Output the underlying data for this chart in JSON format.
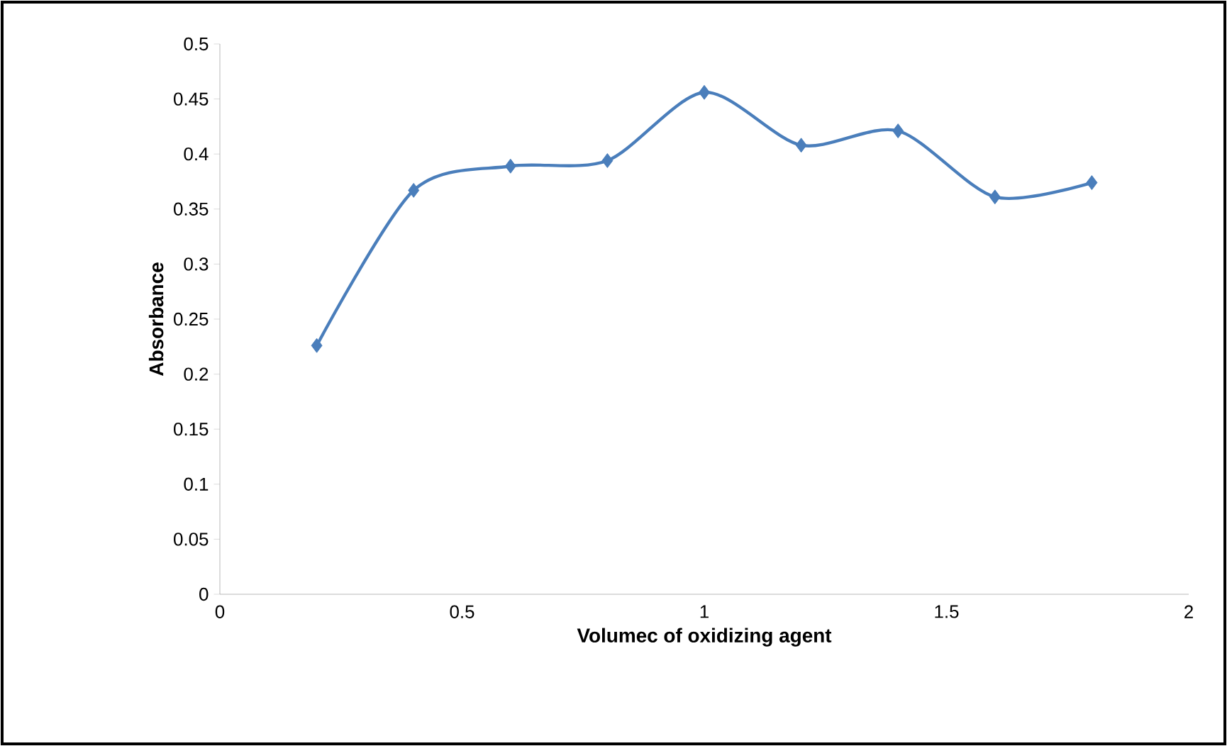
{
  "chart_data": {
    "type": "line",
    "xlabel": "Volumec of oxidizing agent",
    "ylabel": "Absorbance",
    "x": [
      0.2,
      0.4,
      0.6,
      0.8,
      1.0,
      1.2,
      1.4,
      1.6,
      1.8
    ],
    "series": [
      {
        "color": "#4a7ebb",
        "values": [
          0.226,
          0.367,
          0.389,
          0.394,
          0.456,
          0.408,
          0.421,
          0.361,
          0.374
        ]
      }
    ],
    "xlim": [
      0,
      2
    ],
    "xticks": [
      0,
      0.5,
      1,
      1.5,
      2
    ],
    "ylim": [
      0,
      0.5
    ],
    "yticks": [
      0,
      0.05,
      0.1,
      0.15,
      0.2,
      0.25,
      0.3,
      0.35,
      0.4,
      0.45,
      0.5
    ],
    "grid": false,
    "marker": "diamond",
    "line_style": "solid"
  }
}
